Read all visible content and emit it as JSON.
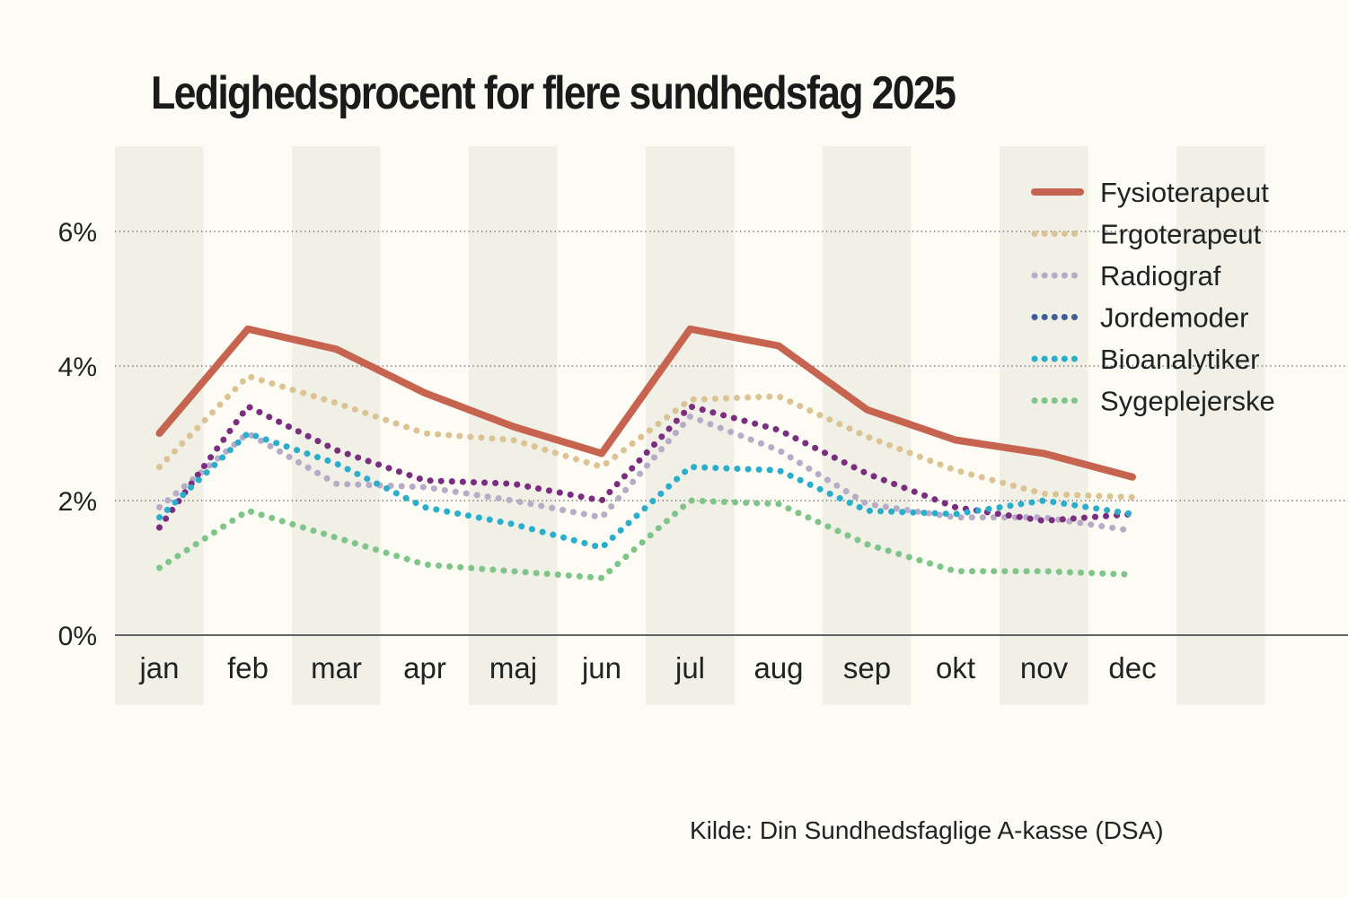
{
  "title": "Ledighedsprocent for flere sundhedsfag 2025",
  "source": "Kilde: Din Sundhedsfaglige A-kasse (DSA)",
  "chart_data": {
    "type": "line",
    "title": "Ledighedsprocent for flere sundhedsfag 2025",
    "categories": [
      "jan",
      "feb",
      "mar",
      "apr",
      "maj",
      "jun",
      "jul",
      "aug",
      "sep",
      "okt",
      "nov",
      "dec"
    ],
    "ylim": [
      0,
      7.3
    ],
    "yticks": [
      0,
      2,
      4,
      6
    ],
    "ytick_labels": [
      "0%",
      "2%",
      "4%",
      "6%"
    ],
    "grid": "horizontal dotted",
    "legend": "top-right",
    "series": [
      {
        "name": "Fysioterapeut",
        "color": "#c66450",
        "style": "solid",
        "values": [
          3.0,
          4.55,
          4.25,
          3.6,
          3.1,
          2.7,
          4.55,
          4.3,
          3.35,
          2.9,
          2.7,
          2.35
        ]
      },
      {
        "name": "Ergoterapeut",
        "color": "#dcc393",
        "style": "dotted",
        "values": [
          2.5,
          3.85,
          3.45,
          3.0,
          2.9,
          2.5,
          3.5,
          3.55,
          2.95,
          2.45,
          2.1,
          2.05
        ]
      },
      {
        "name": "Radiograf",
        "color": "#b8abc8",
        "style": "dotted",
        "values": [
          1.9,
          3.0,
          2.25,
          2.2,
          2.0,
          1.75,
          3.25,
          2.75,
          1.95,
          1.75,
          1.75,
          1.55
        ]
      },
      {
        "name": "Jordemoder",
        "color": "#7b2d80",
        "style": "dotted",
        "legend_color": "#3f5e9a",
        "values": [
          1.6,
          3.4,
          2.75,
          2.3,
          2.25,
          2.0,
          3.4,
          3.05,
          2.4,
          1.9,
          1.7,
          1.8
        ]
      },
      {
        "name": "Bioanalytiker",
        "color": "#2baecb",
        "style": "dotted",
        "values": [
          1.75,
          3.0,
          2.55,
          1.9,
          1.65,
          1.3,
          2.5,
          2.45,
          1.85,
          1.8,
          2.0,
          1.8
        ]
      },
      {
        "name": "Sygeplejerske",
        "color": "#7fc58a",
        "style": "dotted",
        "values": [
          1.0,
          1.85,
          1.45,
          1.05,
          0.95,
          0.85,
          2.0,
          1.95,
          1.35,
          0.95,
          0.95,
          0.9
        ]
      }
    ]
  }
}
